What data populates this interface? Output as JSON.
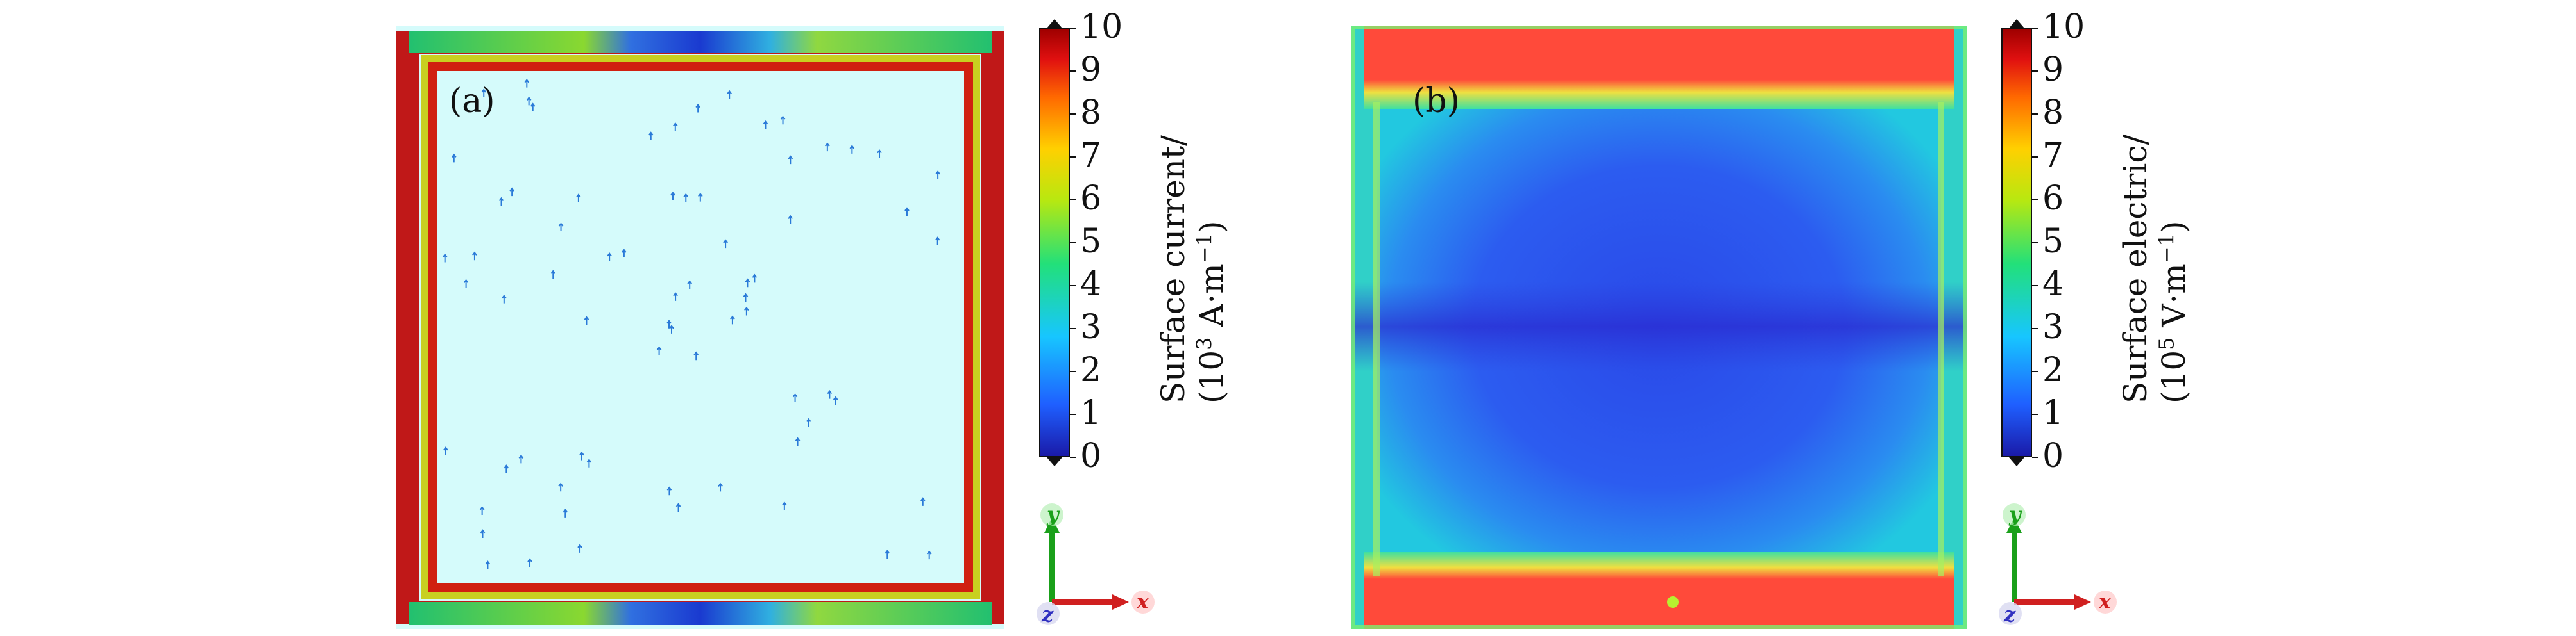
{
  "panels": [
    {
      "label": "(a)",
      "colorbar": {
        "title_line1": "Surface current/",
        "title_line2_base": "(10",
        "title_line2_exp": "3",
        "title_line2_unit": " A·m",
        "title_line2_unit_exp": "−1",
        "title_line2_close": ")",
        "ticks": [
          "0",
          "1",
          "2",
          "3",
          "4",
          "5",
          "6",
          "7",
          "8",
          "9",
          "10"
        ]
      },
      "axes": {
        "y": "y",
        "x": "x",
        "z": "z"
      }
    },
    {
      "label": "(b)",
      "colorbar": {
        "title_line1": "Surface electric/",
        "title_line2_base": "(10",
        "title_line2_exp": "5",
        "title_line2_unit": " V·m",
        "title_line2_unit_exp": "−1",
        "title_line2_close": ")",
        "ticks": [
          "0",
          "1",
          "2",
          "3",
          "4",
          "5",
          "6",
          "7",
          "8",
          "9",
          "10"
        ]
      },
      "axes": {
        "y": "y",
        "x": "x",
        "z": "z"
      }
    }
  ],
  "chart_data": [
    {
      "type": "heatmap",
      "title": "",
      "description_key": "surface-current-vector-map",
      "colorbar_range": [
        0,
        10
      ],
      "colorbar_unit": "10^3 A·m^-1",
      "colormap": [
        "#1a1aa8",
        "#1f5fff",
        "#17c6ff",
        "#22e07a",
        "#b8e810",
        "#ffd000",
        "#ff6a00",
        "#e01010",
        "#a00000"
      ],
      "background_color": "#d5fbfb",
      "edge_value_approx": 9,
      "center_value_approx": 0
    },
    {
      "type": "heatmap",
      "title": "",
      "description_key": "surface-electric-field-map",
      "colorbar_range": [
        0,
        10
      ],
      "colorbar_unit": "10^5 V·m^-1",
      "colormap": [
        "#1a1aa8",
        "#1f5fff",
        "#17c6ff",
        "#22e07a",
        "#b8e810",
        "#ffd000",
        "#ff6a00",
        "#e01010",
        "#a00000"
      ],
      "top_bottom_value_approx": 9,
      "center_value_approx": 1
    }
  ]
}
